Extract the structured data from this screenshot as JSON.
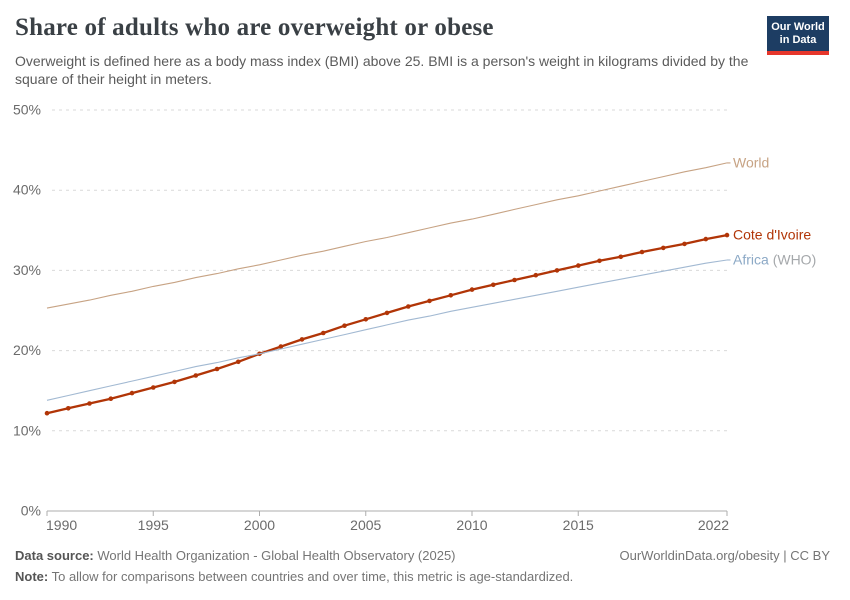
{
  "header": {
    "title": "Share of adults who are overweight or obese",
    "subtitle": "Overweight is defined here as a body mass index (BMI) above 25. BMI is a person's weight in kilograms divided by the square of their height in meters.",
    "logo": {
      "line1": "Our World",
      "line2": "in Data",
      "bg": "#1D3D63",
      "accent": "#E6362B"
    }
  },
  "chart_data": {
    "type": "line",
    "title": "Share of adults who are overweight or obese",
    "xlabel": "",
    "ylabel": "",
    "xlim": [
      1990,
      2022
    ],
    "ylim": [
      0,
      50
    ],
    "grid": "horizontal-dashed",
    "legend_position": "right-end-labels",
    "x_ticks": [
      1990,
      1995,
      2000,
      2005,
      2010,
      2015,
      2022
    ],
    "y_ticks": [
      0,
      10,
      20,
      30,
      40,
      50
    ],
    "y_tick_suffix": "%",
    "x": [
      1990,
      1991,
      1992,
      1993,
      1994,
      1995,
      1996,
      1997,
      1998,
      1999,
      2000,
      2001,
      2002,
      2003,
      2004,
      2005,
      2006,
      2007,
      2008,
      2009,
      2010,
      2011,
      2012,
      2013,
      2014,
      2015,
      2016,
      2017,
      2018,
      2019,
      2020,
      2021,
      2022
    ],
    "series": [
      {
        "name": "World",
        "color": "#C7A384",
        "marker": false,
        "label_parts": [
          {
            "text": "World",
            "color": "#C7A384"
          }
        ],
        "values": [
          25.3,
          25.8,
          26.3,
          26.9,
          27.4,
          28.0,
          28.5,
          29.1,
          29.6,
          30.2,
          30.7,
          31.3,
          31.9,
          32.4,
          33.0,
          33.6,
          34.1,
          34.7,
          35.3,
          35.9,
          36.4,
          37.0,
          37.6,
          38.2,
          38.8,
          39.3,
          39.9,
          40.5,
          41.1,
          41.7,
          42.3,
          42.8,
          43.4
        ]
      },
      {
        "name": "Cote d'Ivoire",
        "color": "#B13507",
        "marker": true,
        "label_parts": [
          {
            "text": "Cote d'Ivoire",
            "color": "#B13507"
          }
        ],
        "values": [
          12.2,
          12.8,
          13.4,
          14.0,
          14.7,
          15.4,
          16.1,
          16.9,
          17.7,
          18.6,
          19.6,
          20.5,
          21.4,
          22.2,
          23.1,
          23.9,
          24.7,
          25.5,
          26.2,
          26.9,
          27.6,
          28.2,
          28.8,
          29.4,
          30.0,
          30.6,
          31.2,
          31.7,
          32.3,
          32.8,
          33.3,
          33.9,
          34.4
        ]
      },
      {
        "name": "Africa (WHO)",
        "color": "#A2B9D2",
        "marker": false,
        "label_parts": [
          {
            "text": "Africa ",
            "color": "#8CA9C6"
          },
          {
            "text": "(WHO)",
            "color": "#A5A8AB"
          }
        ],
        "values": [
          13.8,
          14.4,
          15.0,
          15.6,
          16.2,
          16.8,
          17.4,
          18.0,
          18.5,
          19.1,
          19.6,
          20.2,
          20.8,
          21.4,
          22.0,
          22.6,
          23.2,
          23.8,
          24.3,
          24.9,
          25.4,
          25.9,
          26.4,
          26.9,
          27.4,
          27.9,
          28.4,
          28.9,
          29.4,
          29.9,
          30.4,
          30.9,
          31.3
        ]
      }
    ],
    "axis_colors": {
      "gridline": "#D9D9D9",
      "baseline": "#ADADAD",
      "tick_label": "#6B6B6B"
    }
  },
  "footer": {
    "source_label": "Data source:",
    "source_text": " World Health Organization - Global Health Observatory (2025)",
    "note_label": "Note:",
    "note_text": " To allow for comparisons between countries and over time, this metric is age-standardized.",
    "right_text": "OurWorldinData.org/obesity | CC BY"
  }
}
